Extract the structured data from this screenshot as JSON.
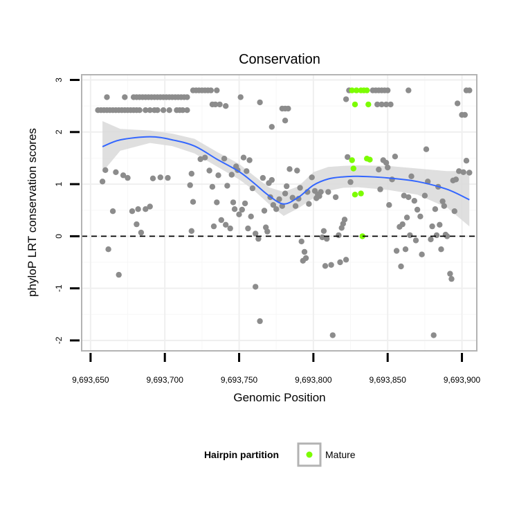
{
  "chart_data": {
    "type": "scatter",
    "title": "Conservation",
    "xlabel": "Genomic Position",
    "ylabel": "phyloP LRT conservation scores",
    "xlim": [
      9693644,
      9693910
    ],
    "ylim": [
      -2.2,
      3.1
    ],
    "x_ticks": [
      9693650,
      9693700,
      9693750,
      9693800,
      9693850,
      9693900
    ],
    "x_tick_labels": [
      "9,693,650",
      "9,693,700",
      "9,693,750",
      "9,693,800",
      "9,693,850",
      "9,693,900"
    ],
    "y_ticks": [
      -2,
      -1,
      0,
      1,
      2,
      3
    ],
    "y_tick_labels": [
      "-2",
      "-1",
      "0",
      "1",
      "2",
      "3"
    ],
    "grid": true,
    "reference_line": {
      "y": 0,
      "style": "dashed"
    },
    "legend": {
      "title": "Hairpin partition",
      "position": "bottom",
      "entries": [
        {
          "label": "Mature",
          "color": "#7cfc00"
        }
      ]
    },
    "colors": {
      "other": "#8c8c8c",
      "mature": "#7cfc00",
      "smooth": "#3366ff",
      "band": "#d9d9d9",
      "panel_border": "#b3b3b3"
    },
    "series": [
      {
        "name": "Mature",
        "points": [
          [
            9693826,
            2.8
          ],
          [
            9693829,
            2.8
          ],
          [
            9693832,
            2.8
          ],
          [
            9693834,
            2.8
          ],
          [
            9693836,
            2.8
          ],
          [
            9693828,
            2.53
          ],
          [
            9693837,
            2.53
          ],
          [
            9693826,
            1.46
          ],
          [
            9693836,
            1.49
          ],
          [
            9693838,
            1.47
          ],
          [
            9693827,
            1.3
          ],
          [
            9693828,
            0.8
          ],
          [
            9693832,
            0.82
          ],
          [
            9693833,
            0.0
          ]
        ]
      },
      {
        "points": [
          [
            9693655,
            2.42
          ],
          [
            9693657,
            2.42
          ],
          [
            9693659,
            2.42
          ],
          [
            9693661,
            2.42
          ],
          [
            9693663,
            2.42
          ],
          [
            9693665,
            2.42
          ],
          [
            9693667,
            2.42
          ],
          [
            9693669,
            2.42
          ],
          [
            9693671,
            2.42
          ],
          [
            9693673,
            2.42
          ],
          [
            9693675,
            2.42
          ],
          [
            9693677,
            2.42
          ],
          [
            9693679,
            2.42
          ],
          [
            9693681,
            2.42
          ],
          [
            9693683,
            2.42
          ],
          [
            9693687,
            2.42
          ],
          [
            9693690,
            2.42
          ],
          [
            9693693,
            2.42
          ],
          [
            9693695,
            2.42
          ],
          [
            9693699,
            2.42
          ],
          [
            9693703,
            2.42
          ],
          [
            9693708,
            2.42
          ],
          [
            9693710,
            2.42
          ],
          [
            9693712,
            2.42
          ],
          [
            9693715,
            2.42
          ],
          [
            9693661,
            2.67
          ],
          [
            9693673,
            2.67
          ],
          [
            9693679,
            2.67
          ],
          [
            9693681,
            2.67
          ],
          [
            9693683,
            2.67
          ],
          [
            9693685,
            2.67
          ],
          [
            9693687,
            2.67
          ],
          [
            9693689,
            2.67
          ],
          [
            9693691,
            2.67
          ],
          [
            9693693,
            2.67
          ],
          [
            9693695,
            2.67
          ],
          [
            9693697,
            2.67
          ],
          [
            9693699,
            2.67
          ],
          [
            9693701,
            2.67
          ],
          [
            9693703,
            2.67
          ],
          [
            9693705,
            2.67
          ],
          [
            9693707,
            2.67
          ],
          [
            9693709,
            2.67
          ],
          [
            9693711,
            2.67
          ],
          [
            9693713,
            2.67
          ],
          [
            9693715,
            2.67
          ],
          [
            9693719,
            2.8
          ],
          [
            9693721,
            2.8
          ],
          [
            9693723,
            2.8
          ],
          [
            9693725,
            2.8
          ],
          [
            9693727,
            2.8
          ],
          [
            9693729,
            2.8
          ],
          [
            9693731,
            2.8
          ],
          [
            9693735,
            2.8
          ],
          [
            9693732,
            2.53
          ],
          [
            9693734,
            2.53
          ],
          [
            9693737,
            2.53
          ],
          [
            9693741,
            2.5
          ],
          [
            9693751,
            2.67
          ],
          [
            9693764,
            2.57
          ],
          [
            9693772,
            2.1
          ],
          [
            9693779,
            2.45
          ],
          [
            9693781,
            2.45
          ],
          [
            9693783,
            2.45
          ],
          [
            9693781,
            2.22
          ],
          [
            9693824,
            2.8
          ],
          [
            9693840,
            2.8
          ],
          [
            9693842,
            2.8
          ],
          [
            9693844,
            2.8
          ],
          [
            9693846,
            2.8
          ],
          [
            9693848,
            2.8
          ],
          [
            9693850,
            2.8
          ],
          [
            9693864,
            2.8
          ],
          [
            9693903,
            2.8
          ],
          [
            9693905,
            2.8
          ],
          [
            9693822,
            2.63
          ],
          [
            9693843,
            2.53
          ],
          [
            9693846,
            2.53
          ],
          [
            9693849,
            2.53
          ],
          [
            9693852,
            2.53
          ],
          [
            9693897,
            2.55
          ],
          [
            9693900,
            2.33
          ],
          [
            9693902,
            2.33
          ],
          [
            9693658,
            1.05
          ],
          [
            9693660,
            1.27
          ],
          [
            9693662,
            -0.25
          ],
          [
            9693665,
            0.48
          ],
          [
            9693667,
            1.23
          ],
          [
            9693669,
            -0.74
          ],
          [
            9693672,
            1.17
          ],
          [
            9693675,
            1.12
          ],
          [
            9693678,
            0.48
          ],
          [
            9693681,
            0.23
          ],
          [
            9693682,
            0.52
          ],
          [
            9693684,
            0.07
          ],
          [
            9693687,
            0.52
          ],
          [
            9693690,
            0.57
          ],
          [
            9693692,
            1.11
          ],
          [
            9693697,
            1.13
          ],
          [
            9693702,
            1.12
          ],
          [
            9693717,
            0.98
          ],
          [
            9693718,
            1.2
          ],
          [
            9693719,
            0.66
          ],
          [
            9693718,
            0.1
          ],
          [
            9693724,
            1.48
          ],
          [
            9693727,
            1.51
          ],
          [
            9693730,
            1.26
          ],
          [
            9693732,
            0.95
          ],
          [
            9693733,
            0.19
          ],
          [
            9693735,
            0.65
          ],
          [
            9693736,
            1.17
          ],
          [
            9693738,
            0.31
          ],
          [
            9693740,
            1.49
          ],
          [
            9693741,
            0.22
          ],
          [
            9693742,
            0.97
          ],
          [
            9693744,
            0.15
          ],
          [
            9693745,
            1.18
          ],
          [
            9693746,
            0.65
          ],
          [
            9693747,
            0.52
          ],
          [
            9693748,
            1.34
          ],
          [
            9693749,
            1.27
          ],
          [
            9693750,
            0.42
          ],
          [
            9693752,
            0.51
          ],
          [
            9693753,
            1.51
          ],
          [
            9693754,
            0.63
          ],
          [
            9693755,
            1.25
          ],
          [
            9693756,
            0.15
          ],
          [
            9693757,
            1.46
          ],
          [
            9693758,
            0.38
          ],
          [
            9693759,
            0.92
          ],
          [
            9693761,
            0.05
          ],
          [
            9693761,
            -0.97
          ],
          [
            9693763,
            -0.05
          ],
          [
            9693764,
            -1.63
          ],
          [
            9693766,
            1.12
          ],
          [
            9693767,
            0.49
          ],
          [
            9693768,
            0.17
          ],
          [
            9693769,
            0.09
          ],
          [
            9693770,
            1.02
          ],
          [
            9693771,
            0.75
          ],
          [
            9693772,
            1.08
          ],
          [
            9693773,
            0.6
          ],
          [
            9693775,
            0.52
          ],
          [
            9693777,
            0.71
          ],
          [
            9693779,
            0.58
          ],
          [
            9693781,
            0.82
          ],
          [
            9693782,
            0.96
          ],
          [
            9693784,
            1.29
          ],
          [
            9693786,
            0.74
          ],
          [
            9693788,
            0.58
          ],
          [
            9693790,
            0.72
          ],
          [
            9693789,
            1.26
          ],
          [
            9693791,
            0.93
          ],
          [
            9693792,
            -0.1
          ],
          [
            9693793,
            -0.47
          ],
          [
            9693794,
            -0.3
          ],
          [
            9693795,
            -0.42
          ],
          [
            9693796,
            0.85
          ],
          [
            9693797,
            0.62
          ],
          [
            9693799,
            1.13
          ],
          [
            9693801,
            0.87
          ],
          [
            9693802,
            0.73
          ],
          [
            9693803,
            0.8
          ],
          [
            9693804,
            0.77
          ],
          [
            9693805,
            0.85
          ],
          [
            9693806,
            -0.02
          ],
          [
            9693807,
            0.1
          ],
          [
            9693808,
            -0.57
          ],
          [
            9693809,
            -0.05
          ],
          [
            9693810,
            0.85
          ],
          [
            9693812,
            -0.55
          ],
          [
            9693813,
            -1.9
          ],
          [
            9693815,
            0.75
          ],
          [
            9693817,
            0.02
          ],
          [
            9693818,
            -0.5
          ],
          [
            9693819,
            0.16
          ],
          [
            9693820,
            0.24
          ],
          [
            9693821,
            0.32
          ],
          [
            9693822,
            -0.45
          ],
          [
            9693823,
            1.52
          ],
          [
            9693825,
            1.04
          ],
          [
            9693844,
            1.28
          ],
          [
            9693845,
            0.9
          ],
          [
            9693847,
            1.46
          ],
          [
            9693849,
            1.41
          ],
          [
            9693850,
            1.32
          ],
          [
            9693851,
            0.6
          ],
          [
            9693853,
            1.09
          ],
          [
            9693855,
            1.53
          ],
          [
            9693856,
            -0.28
          ],
          [
            9693858,
            0.18
          ],
          [
            9693859,
            -0.58
          ],
          [
            9693860,
            0.23
          ],
          [
            9693861,
            0.78
          ],
          [
            9693862,
            -0.25
          ],
          [
            9693863,
            0.36
          ],
          [
            9693864,
            0.75
          ],
          [
            9693865,
            0.02
          ],
          [
            9693866,
            1.15
          ],
          [
            9693868,
            0.68
          ],
          [
            9693869,
            -0.08
          ],
          [
            9693870,
            0.51
          ],
          [
            9693872,
            0.38
          ],
          [
            9693873,
            -0.35
          ],
          [
            9693875,
            0.78
          ],
          [
            9693876,
            1.67
          ],
          [
            9693877,
            1.05
          ],
          [
            9693879,
            -0.06
          ],
          [
            9693880,
            0.19
          ],
          [
            9693881,
            -1.9
          ],
          [
            9693882,
            0.52
          ],
          [
            9693883,
            0.02
          ],
          [
            9693884,
            0.95
          ],
          [
            9693885,
            0.22
          ],
          [
            9693886,
            -0.25
          ],
          [
            9693887,
            0.67
          ],
          [
            9693888,
            0.58
          ],
          [
            9693889,
            0.03
          ],
          [
            9693890,
            0.0
          ],
          [
            9693892,
            -0.72
          ],
          [
            9693893,
            -0.82
          ],
          [
            9693894,
            1.07
          ],
          [
            9693895,
            0.48
          ],
          [
            9693896,
            1.09
          ],
          [
            9693898,
            1.25
          ],
          [
            9693901,
            1.23
          ],
          [
            9693903,
            1.45
          ],
          [
            9693905,
            1.22
          ]
        ]
      }
    ],
    "smooth": {
      "points": [
        [
          9693658,
          1.72
        ],
        [
          9693670,
          1.85
        ],
        [
          9693690,
          1.91
        ],
        [
          9693705,
          1.85
        ],
        [
          9693720,
          1.73
        ],
        [
          9693735,
          1.48
        ],
        [
          9693750,
          1.24
        ],
        [
          9693760,
          1.02
        ],
        [
          9693770,
          0.78
        ],
        [
          9693780,
          0.62
        ],
        [
          9693790,
          0.75
        ],
        [
          9693800,
          0.98
        ],
        [
          9693810,
          1.1
        ],
        [
          9693820,
          1.14
        ],
        [
          9693830,
          1.15
        ],
        [
          9693850,
          1.12
        ],
        [
          9693870,
          1.05
        ],
        [
          9693890,
          0.9
        ],
        [
          9693905,
          0.7
        ]
      ],
      "band_upper": [
        2.21,
        2.06,
        2.03,
        1.97,
        1.87,
        1.62,
        1.39,
        1.16,
        0.94,
        0.85,
        0.96,
        1.23,
        1.33,
        1.35,
        1.36,
        1.35,
        1.3,
        1.25,
        1.25
      ],
      "band_lower": [
        1.23,
        1.64,
        1.79,
        1.73,
        1.59,
        1.34,
        1.09,
        0.88,
        0.62,
        0.39,
        0.54,
        0.73,
        0.87,
        0.93,
        0.94,
        0.89,
        0.8,
        0.55,
        0.19
      ]
    }
  }
}
